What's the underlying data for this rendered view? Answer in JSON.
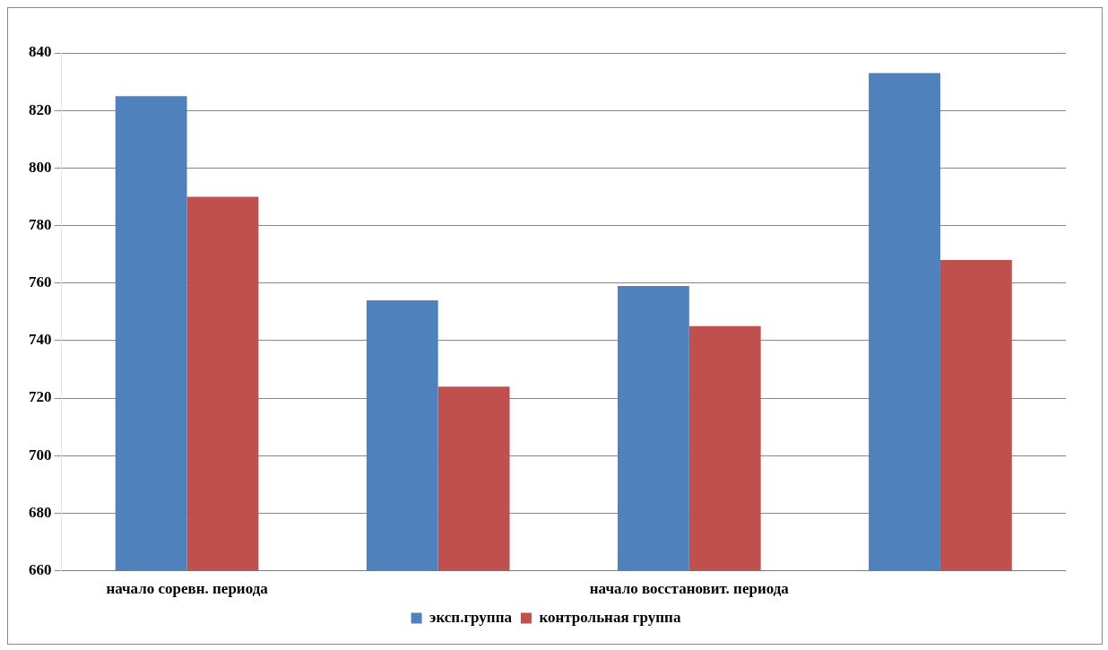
{
  "chart_data": {
    "type": "bar",
    "categories": [
      "начало соревн. периода",
      null,
      "начало восстановит. периода",
      null
    ],
    "series": [
      {
        "name": "эксп.группа",
        "color": "#4f81bd",
        "values": [
          825,
          754,
          759,
          833
        ]
      },
      {
        "name": "контрольная группа",
        "color": "#c0504d",
        "values": [
          790,
          724,
          745,
          768
        ]
      }
    ],
    "ylim": [
      660,
      840
    ],
    "yticks": [
      660,
      680,
      700,
      720,
      740,
      760,
      780,
      800,
      820,
      840
    ],
    "grid": "y",
    "legend": "bottom"
  }
}
